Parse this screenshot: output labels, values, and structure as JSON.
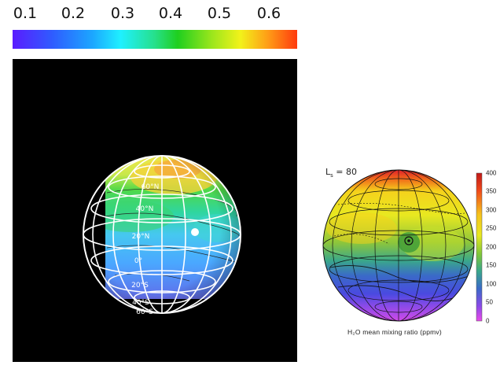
{
  "top_colorbar": {
    "ticks": [
      "0.1",
      "0.2",
      "0.3",
      "0.4",
      "0.5",
      "0.6"
    ]
  },
  "left_globe": {
    "latitude_labels": [
      "60°N",
      "40°N",
      "20°N",
      "0°",
      "20°S",
      "40°S",
      "60°S"
    ]
  },
  "right_globe": {
    "season_label": "L",
    "season_subscript": "s",
    "season_value": "= 80",
    "colorbar_ticks": [
      "400",
      "350",
      "300",
      "250",
      "200",
      "150",
      "100",
      "50",
      "0"
    ],
    "caption": "H₂O mean mixing ratio (ppmv)"
  },
  "colors": {
    "background": "#ffffff",
    "panel": "#000000"
  }
}
